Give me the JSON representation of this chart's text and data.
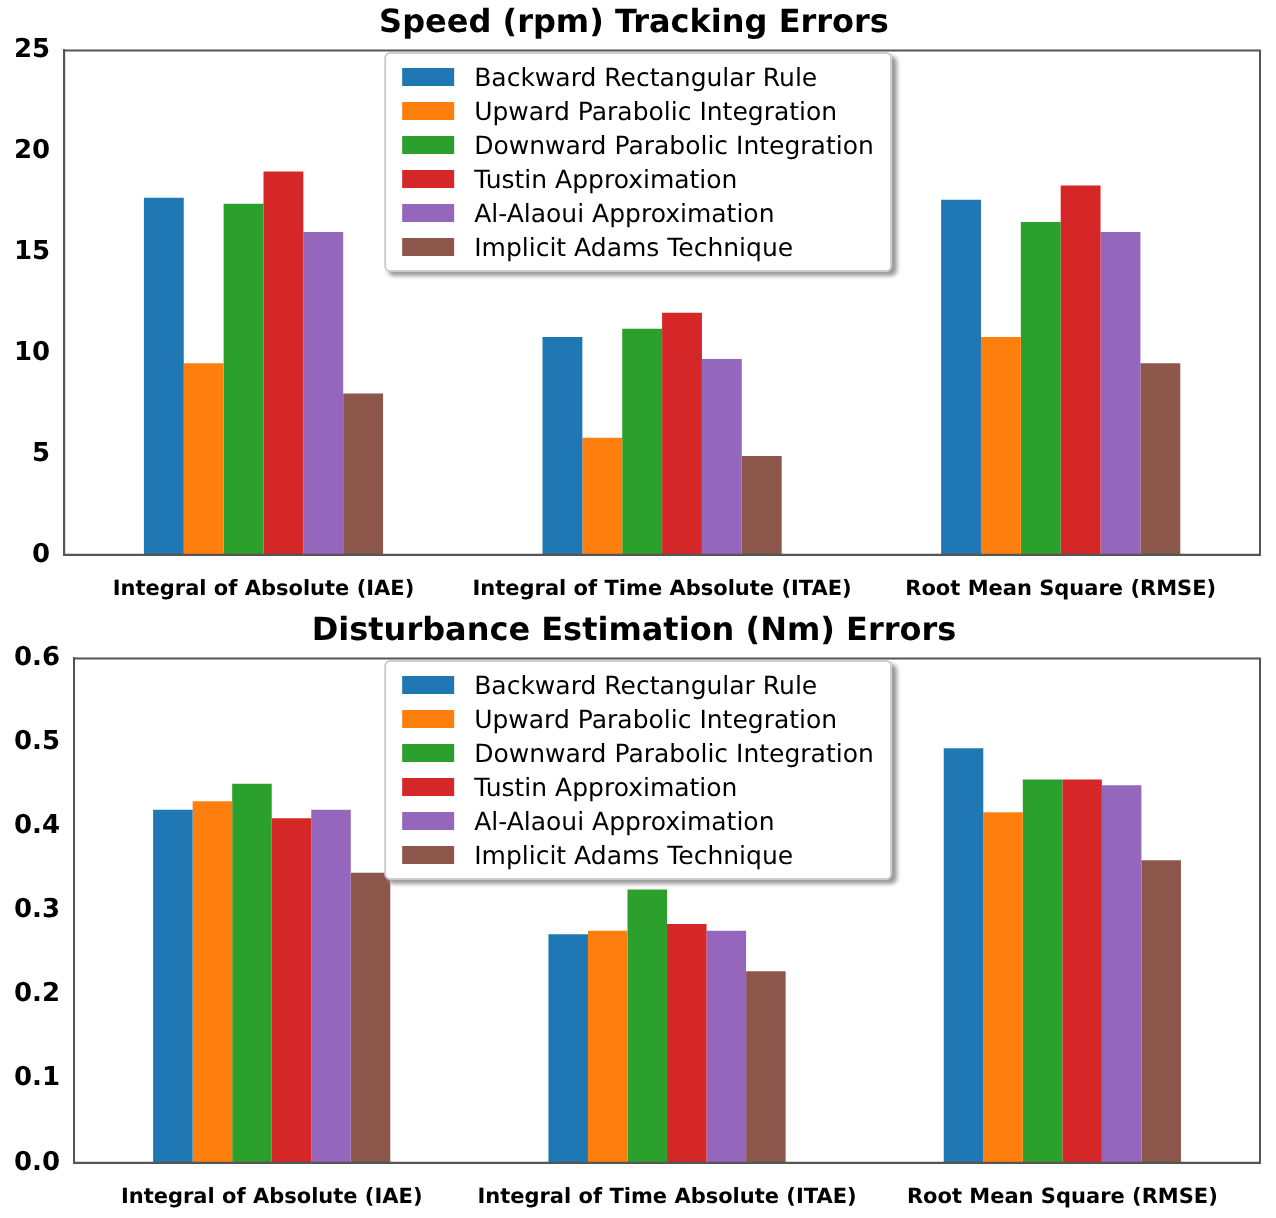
{
  "chart_data": [
    {
      "type": "bar",
      "title": "Speed (rpm) Tracking Errors",
      "categories": [
        "Integral of Absolute (IAE)",
        "Integral of Time Absolute (ITAE)",
        "Root Mean Square (RMSE)"
      ],
      "ylim": [
        0,
        25
      ],
      "yticks": [
        0,
        5,
        10,
        15,
        20,
        25
      ],
      "legend": "top",
      "series": [
        {
          "name": "Backward Rectangular Rule",
          "color": "#1f77b4",
          "values": [
            17.7,
            10.8,
            17.6
          ]
        },
        {
          "name": "Upward Parabolic Integration",
          "color": "#ff7f0e",
          "values": [
            9.5,
            5.8,
            10.8
          ]
        },
        {
          "name": "Downward Parabolic Integration",
          "color": "#2ca02c",
          "values": [
            17.4,
            11.2,
            16.5
          ]
        },
        {
          "name": "Tustin Approximation",
          "color": "#d62728",
          "values": [
            19.0,
            12.0,
            18.3
          ]
        },
        {
          "name": "Al-Alaoui Approximation",
          "color": "#9467bd",
          "values": [
            16.0,
            9.7,
            16.0
          ]
        },
        {
          "name": "Implicit Adams Technique",
          "color": "#8c564b",
          "values": [
            8.0,
            4.9,
            9.5
          ]
        }
      ]
    },
    {
      "type": "bar",
      "title": "Disturbance Estimation (Nm) Errors",
      "categories": [
        "Integral of Absolute (IAE)",
        "Integral of Time Absolute (ITAE)",
        "Root Mean Square (RMSE)"
      ],
      "ylim": [
        0,
        0.6
      ],
      "yticks": [
        {
          "value": 0,
          "label": "0.0"
        },
        0.1,
        0.2,
        0.3,
        0.4,
        0.5,
        0.6
      ],
      "legend": "top",
      "series": [
        {
          "name": "Backward Rectangular Rule",
          "color": "#1f77b4",
          "values": [
            0.42,
            0.272,
            0.493
          ]
        },
        {
          "name": "Upward Parabolic Integration",
          "color": "#ff7f0e",
          "values": [
            0.43,
            0.276,
            0.417
          ]
        },
        {
          "name": "Downward Parabolic Integration",
          "color": "#2ca02c",
          "values": [
            0.451,
            0.325,
            0.456
          ]
        },
        {
          "name": "Tustin Approximation",
          "color": "#d62728",
          "values": [
            0.41,
            0.284,
            0.456
          ]
        },
        {
          "name": "Al-Alaoui Approximation",
          "color": "#9467bd",
          "values": [
            0.42,
            0.276,
            0.449
          ]
        },
        {
          "name": "Implicit Adams Technique",
          "color": "#8c564b",
          "values": [
            0.345,
            0.228,
            0.36
          ]
        }
      ]
    }
  ]
}
